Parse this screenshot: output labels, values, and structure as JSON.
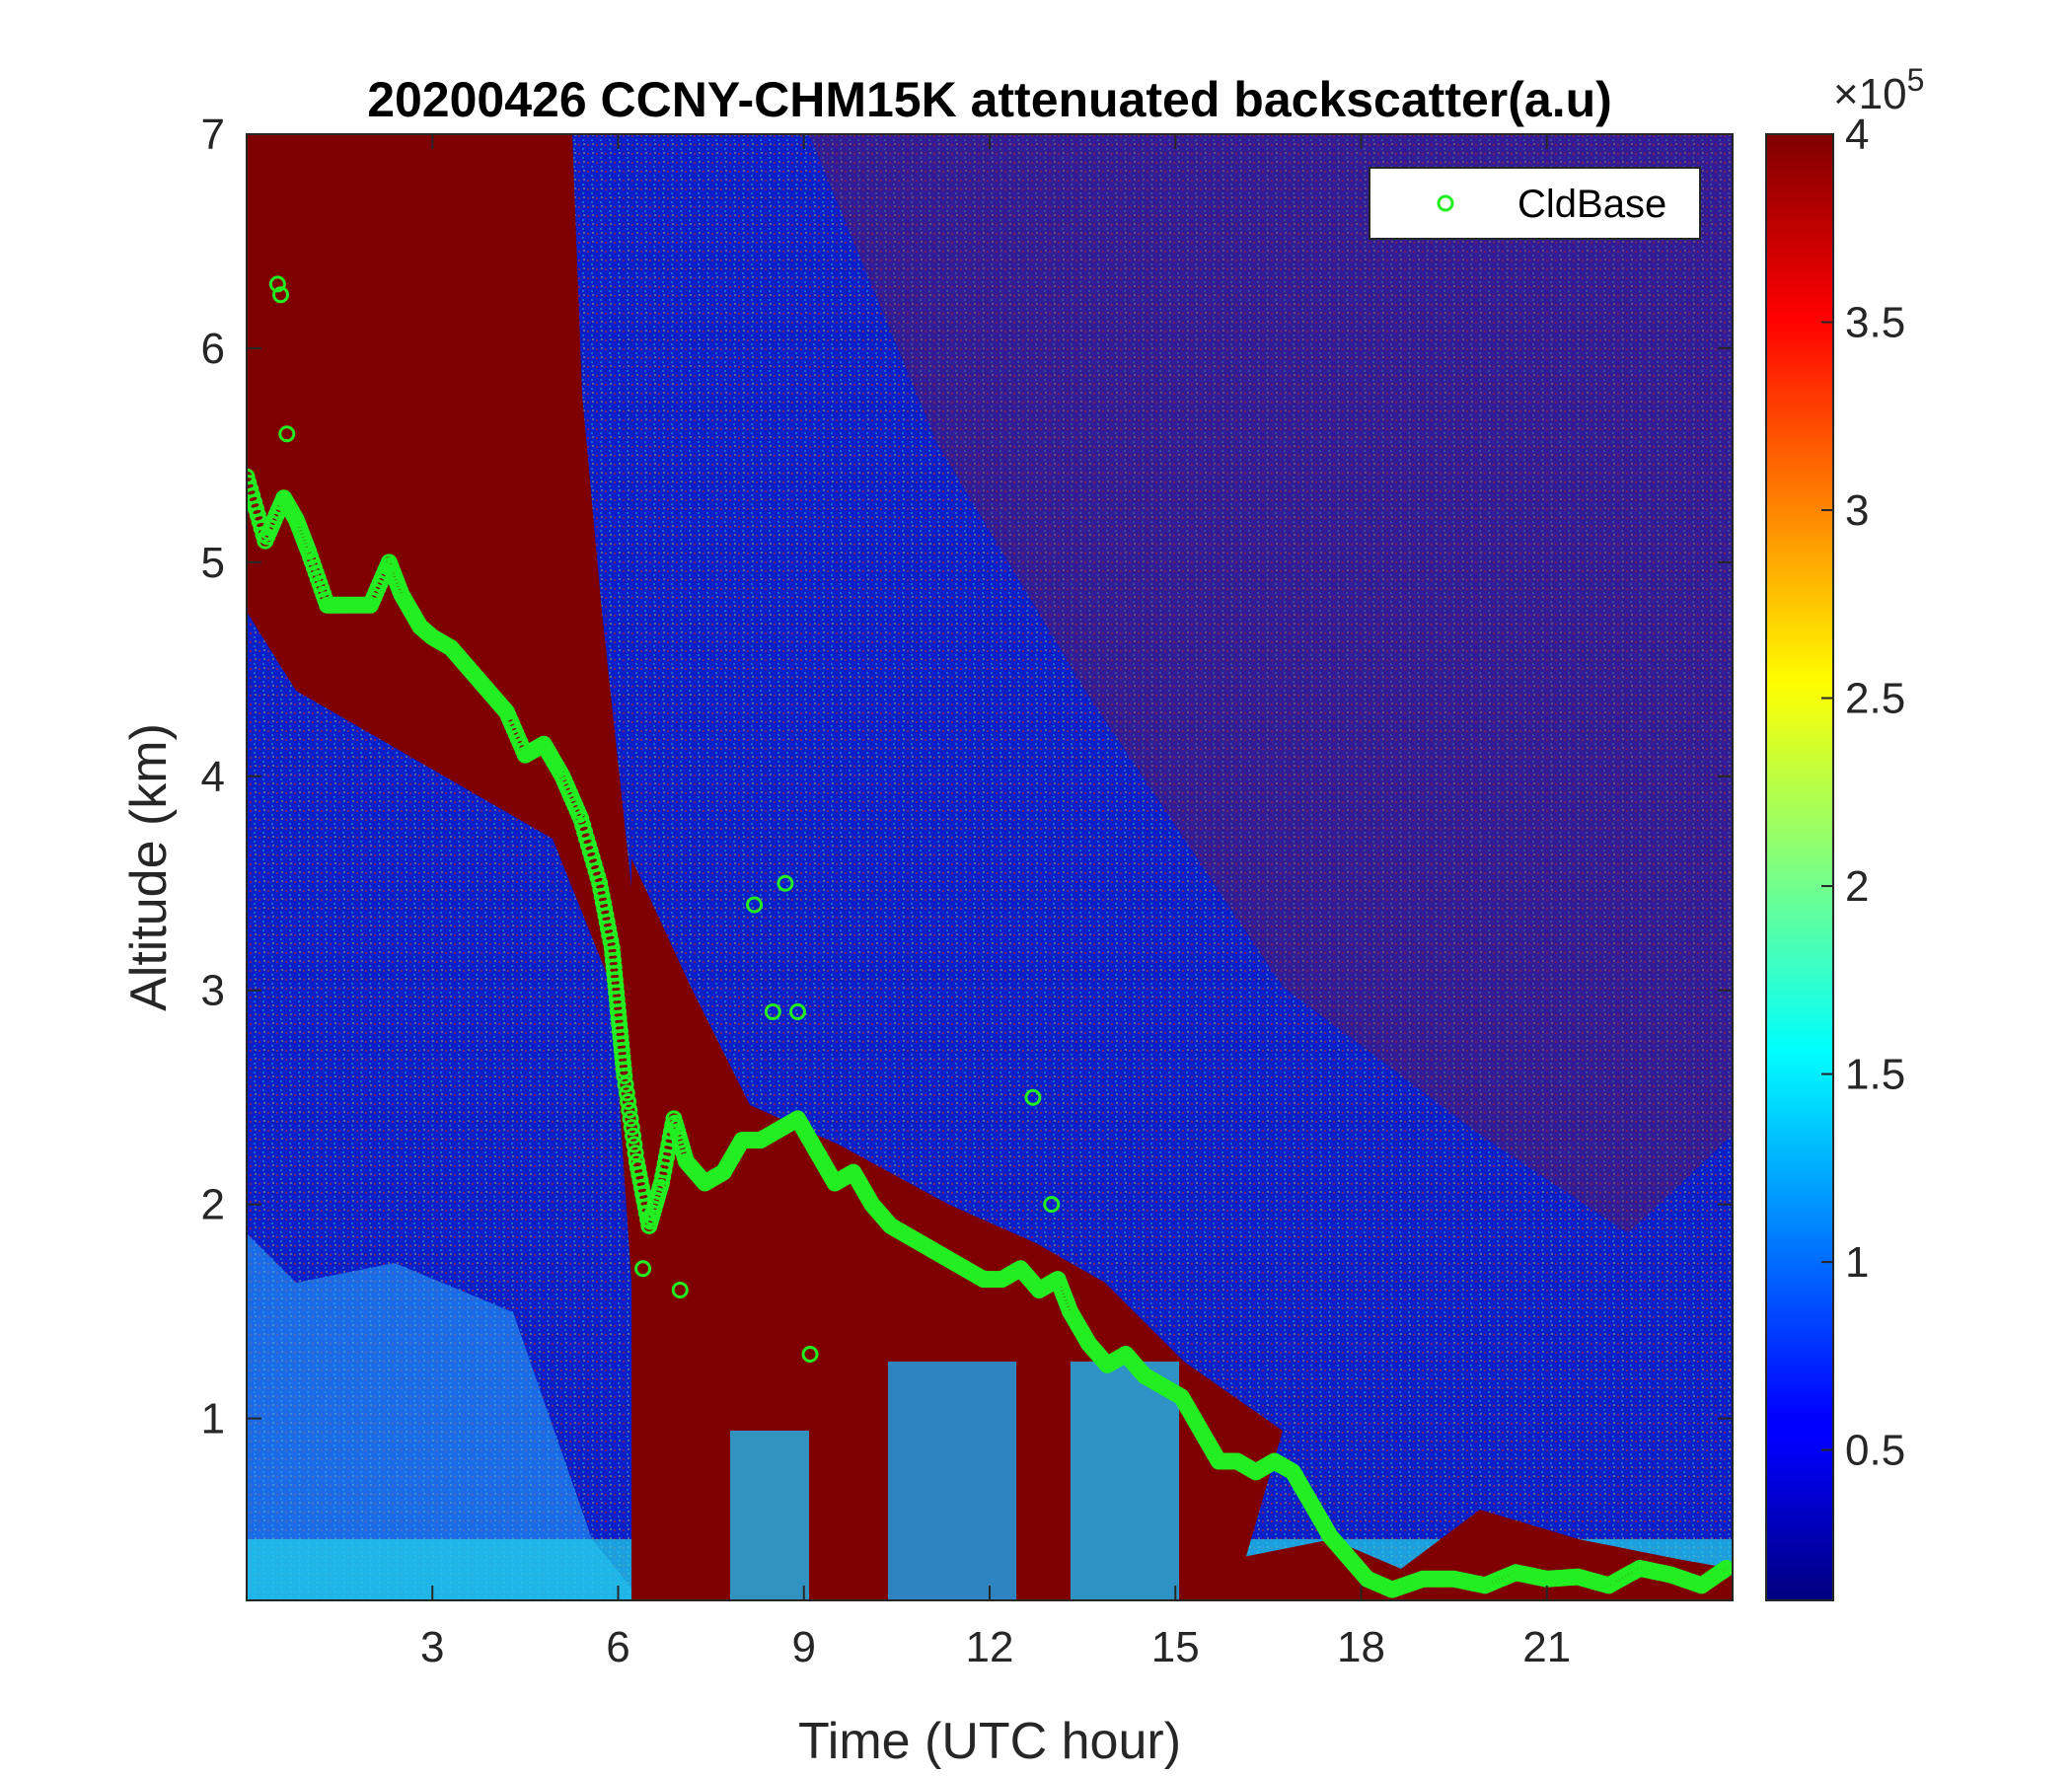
{
  "chart_data": {
    "type": "heatmap",
    "title": "20200426 CCNY-CHM15K attenuated backscatter(a.u)",
    "xlabel": "Time (UTC hour)",
    "ylabel": "Altitude (km)",
    "xlim": [
      0,
      24
    ],
    "ylim": [
      0.15,
      7
    ],
    "xticks": [
      3,
      6,
      9,
      12,
      15,
      18,
      21
    ],
    "xtick_labels": [
      "3",
      "6",
      "9",
      "12",
      "15",
      "18",
      "21"
    ],
    "yticks": [
      1,
      2,
      3,
      4,
      5,
      6,
      7
    ],
    "ytick_labels": [
      "1",
      "2",
      "3",
      "4",
      "5",
      "6",
      "7"
    ],
    "colormap": "jet",
    "colorbar": {
      "range": [
        0.1,
        4
      ],
      "ticks": [
        0.5,
        1,
        1.5,
        2,
        2.5,
        3,
        3.5,
        4
      ],
      "tick_labels": [
        "0.5",
        "1",
        "1.5",
        "2",
        "2.5",
        "3",
        "3.5",
        "4"
      ],
      "exponent_label": "×10",
      "exponent_power": "5"
    },
    "legend": {
      "location": "top-right",
      "entries": [
        "CldBase"
      ]
    },
    "series": [
      {
        "name": "CldBase",
        "marker": "circle",
        "color": "#22ee22",
        "x": [
          0.0,
          0.3,
          0.6,
          0.8,
          1.0,
          1.3,
          1.6,
          2.0,
          2.3,
          2.5,
          2.8,
          3.0,
          3.3,
          3.6,
          3.9,
          4.2,
          4.5,
          4.8,
          5.1,
          5.4,
          5.7,
          5.9,
          6.0,
          6.1,
          6.3,
          6.5,
          6.7,
          6.9,
          7.1,
          7.4,
          7.7,
          8.0,
          8.3,
          8.6,
          8.9,
          9.2,
          9.5,
          9.8,
          10.1,
          10.4,
          10.7,
          11.0,
          11.3,
          11.6,
          11.9,
          12.2,
          12.5,
          12.8,
          13.1,
          13.3,
          13.6,
          13.9,
          14.2,
          14.5,
          14.8,
          15.1,
          15.4,
          15.7,
          16.0,
          16.3,
          16.6,
          16.9,
          17.2,
          17.5,
          17.8,
          18.1,
          18.5,
          19.0,
          19.5,
          20.0,
          20.5,
          21.0,
          21.5,
          22.0,
          22.5,
          23.0,
          23.5,
          23.9
        ],
        "y": [
          5.4,
          5.1,
          5.3,
          5.2,
          5.05,
          4.8,
          4.8,
          4.8,
          5.0,
          4.85,
          4.7,
          4.65,
          4.6,
          4.5,
          4.4,
          4.3,
          4.1,
          4.15,
          4.0,
          3.8,
          3.5,
          3.2,
          2.9,
          2.6,
          2.2,
          1.9,
          2.1,
          2.4,
          2.2,
          2.1,
          2.15,
          2.3,
          2.3,
          2.35,
          2.4,
          2.25,
          2.1,
          2.15,
          2.0,
          1.9,
          1.85,
          1.8,
          1.75,
          1.7,
          1.65,
          1.65,
          1.7,
          1.6,
          1.65,
          1.5,
          1.35,
          1.25,
          1.3,
          1.2,
          1.15,
          1.1,
          0.95,
          0.8,
          0.8,
          0.75,
          0.8,
          0.75,
          0.6,
          0.45,
          0.35,
          0.25,
          0.2,
          0.25,
          0.25,
          0.22,
          0.28,
          0.25,
          0.26,
          0.22,
          0.3,
          0.27,
          0.22,
          0.3
        ]
      }
    ],
    "scatter_outliers": {
      "x": [
        0.5,
        0.55,
        0.65,
        8.7,
        8.2,
        8.9,
        12.7,
        13.0,
        9.1,
        8.5,
        6.4,
        7.0
      ],
      "y": [
        6.3,
        6.25,
        5.6,
        3.5,
        3.4,
        2.9,
        2.5,
        2.0,
        1.3,
        2.9,
        1.7,
        1.6
      ]
    }
  }
}
